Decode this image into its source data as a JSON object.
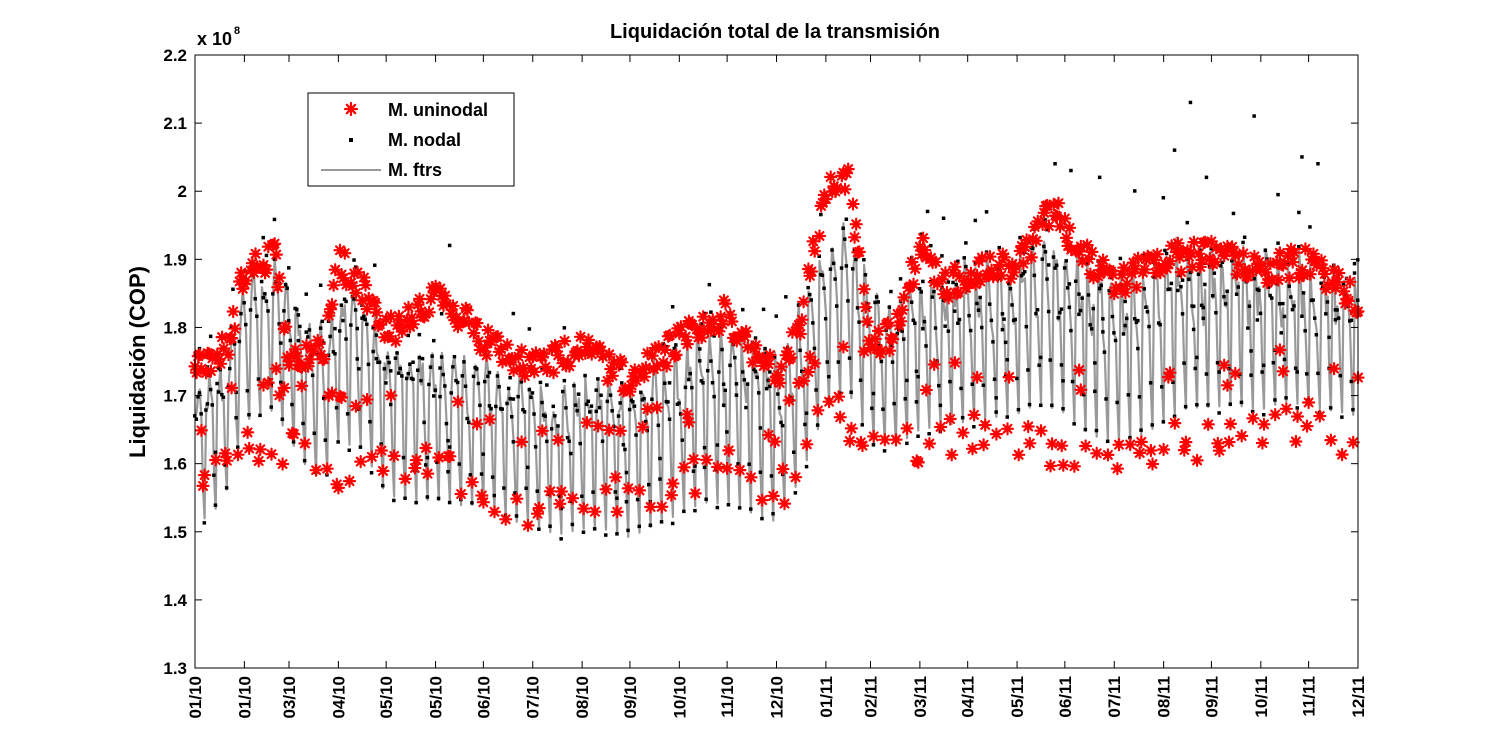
{
  "chart_data": {
    "type": "line",
    "title": "Liquidación total de la transmisión",
    "ylabel": "Liquidación (COP)",
    "xlabel": "",
    "y_multiplier": "x 10",
    "y_multiplier_exponent": "8",
    "ylim": [
      1.3,
      2.2
    ],
    "yticks": [
      "1.3",
      "1.4",
      "1.5",
      "1.6",
      "1.7",
      "1.8",
      "1.9",
      "2",
      "2.1",
      "2.2"
    ],
    "xlim": [
      0,
      730
    ],
    "xticks": [
      {
        "x": 0,
        "label": "01/10"
      },
      {
        "x": 31,
        "label": "01/10"
      },
      {
        "x": 59,
        "label": "03/10"
      },
      {
        "x": 90,
        "label": "04/10"
      },
      {
        "x": 120,
        "label": "05/10"
      },
      {
        "x": 151,
        "label": "05/10"
      },
      {
        "x": 181,
        "label": "06/10"
      },
      {
        "x": 212,
        "label": "07/10"
      },
      {
        "x": 243,
        "label": "08/10"
      },
      {
        "x": 273,
        "label": "09/10"
      },
      {
        "x": 304,
        "label": "10/10"
      },
      {
        "x": 334,
        "label": "11/10"
      },
      {
        "x": 365,
        "label": "12/10"
      },
      {
        "x": 396,
        "label": "01/11"
      },
      {
        "x": 424,
        "label": "02/11"
      },
      {
        "x": 455,
        "label": "03/11"
      },
      {
        "x": 485,
        "label": "04/11"
      },
      {
        "x": 516,
        "label": "05/11"
      },
      {
        "x": 546,
        "label": "06/11"
      },
      {
        "x": 577,
        "label": "07/11"
      },
      {
        "x": 608,
        "label": "08/11"
      },
      {
        "x": 638,
        "label": "09/11"
      },
      {
        "x": 669,
        "label": "10/11"
      },
      {
        "x": 699,
        "label": "11/11"
      },
      {
        "x": 730,
        "label": "12/11"
      }
    ],
    "grid": false,
    "legend": {
      "placement": "top-left",
      "entries": [
        {
          "label": "M. uninodal",
          "marker": "asterisk",
          "color": "#ff0000"
        },
        {
          "label": "M. nodal",
          "marker": "dot",
          "color": "#000000"
        },
        {
          "label": "M. ftrs",
          "marker": "line",
          "color": "#999999"
        }
      ]
    },
    "series": [
      {
        "name": "M. ftrs",
        "style": "line",
        "color": "#999999",
        "anchors": [
          [
            0,
            1.62
          ],
          [
            10,
            1.64
          ],
          [
            18,
            1.66
          ],
          [
            25,
            1.72
          ],
          [
            31,
            1.78
          ],
          [
            40,
            1.79
          ],
          [
            50,
            1.8
          ],
          [
            59,
            1.76
          ],
          [
            70,
            1.72
          ],
          [
            80,
            1.7
          ],
          [
            90,
            1.76
          ],
          [
            105,
            1.75
          ],
          [
            120,
            1.68
          ],
          [
            135,
            1.67
          ],
          [
            151,
            1.67
          ],
          [
            166,
            1.66
          ],
          [
            181,
            1.66
          ],
          [
            196,
            1.64
          ],
          [
            212,
            1.63
          ],
          [
            228,
            1.62
          ],
          [
            243,
            1.63
          ],
          [
            258,
            1.63
          ],
          [
            273,
            1.62
          ],
          [
            288,
            1.64
          ],
          [
            304,
            1.66
          ],
          [
            319,
            1.68
          ],
          [
            334,
            1.68
          ],
          [
            350,
            1.67
          ],
          [
            365,
            1.66
          ],
          [
            380,
            1.72
          ],
          [
            396,
            1.82
          ],
          [
            410,
            1.84
          ],
          [
            424,
            1.76
          ],
          [
            440,
            1.75
          ],
          [
            455,
            1.77
          ],
          [
            470,
            1.78
          ],
          [
            485,
            1.79
          ],
          [
            500,
            1.8
          ],
          [
            516,
            1.81
          ],
          [
            530,
            1.83
          ],
          [
            546,
            1.82
          ],
          [
            560,
            1.79
          ],
          [
            577,
            1.77
          ],
          [
            592,
            1.78
          ],
          [
            608,
            1.8
          ],
          [
            623,
            1.82
          ],
          [
            638,
            1.82
          ],
          [
            653,
            1.82
          ],
          [
            669,
            1.81
          ],
          [
            684,
            1.82
          ],
          [
            699,
            1.81
          ],
          [
            715,
            1.8
          ],
          [
            730,
            1.79
          ]
        ],
        "amplitude": [
          [
            0,
            0.13
          ],
          [
            90,
            0.15
          ],
          [
            181,
            0.14
          ],
          [
            273,
            0.15
          ],
          [
            365,
            0.17
          ],
          [
            396,
            0.16
          ],
          [
            455,
            0.14
          ],
          [
            546,
            0.17
          ],
          [
            638,
            0.16
          ],
          [
            730,
            0.14
          ]
        ],
        "weekly_cycle_days": 7
      },
      {
        "name": "M. uninodal",
        "style": "asterisk",
        "color": "#ff0000",
        "high_level": [
          [
            0,
            1.74
          ],
          [
            20,
            1.77
          ],
          [
            31,
            1.88
          ],
          [
            50,
            1.91
          ],
          [
            59,
            1.76
          ],
          [
            80,
            1.76
          ],
          [
            90,
            1.9
          ],
          [
            110,
            1.84
          ],
          [
            120,
            1.79
          ],
          [
            140,
            1.82
          ],
          [
            151,
            1.84
          ],
          [
            170,
            1.81
          ],
          [
            181,
            1.78
          ],
          [
            212,
            1.74
          ],
          [
            243,
            1.77
          ],
          [
            273,
            1.72
          ],
          [
            304,
            1.78
          ],
          [
            334,
            1.82
          ],
          [
            350,
            1.76
          ],
          [
            365,
            1.73
          ],
          [
            380,
            1.81
          ],
          [
            396,
            2.0
          ],
          [
            410,
            2.02
          ],
          [
            424,
            1.78
          ],
          [
            440,
            1.79
          ],
          [
            455,
            1.92
          ],
          [
            470,
            1.86
          ],
          [
            485,
            1.88
          ],
          [
            500,
            1.89
          ],
          [
            516,
            1.89
          ],
          [
            540,
            1.98
          ],
          [
            546,
            1.94
          ],
          [
            577,
            1.86
          ],
          [
            608,
            1.9
          ],
          [
            638,
            1.91
          ],
          [
            669,
            1.88
          ],
          [
            699,
            1.9
          ],
          [
            730,
            1.84
          ]
        ],
        "low_level": [
          [
            0,
            1.55
          ],
          [
            31,
            1.62
          ],
          [
            59,
            1.62
          ],
          [
            90,
            1.58
          ],
          [
            120,
            1.6
          ],
          [
            151,
            1.6
          ],
          [
            181,
            1.56
          ],
          [
            212,
            1.53
          ],
          [
            243,
            1.54
          ],
          [
            273,
            1.56
          ],
          [
            304,
            1.57
          ],
          [
            334,
            1.6
          ],
          [
            365,
            1.55
          ],
          [
            396,
            1.68
          ],
          [
            424,
            1.64
          ],
          [
            455,
            1.62
          ],
          [
            485,
            1.65
          ],
          [
            516,
            1.63
          ],
          [
            546,
            1.62
          ],
          [
            577,
            1.62
          ],
          [
            608,
            1.63
          ],
          [
            638,
            1.63
          ],
          [
            669,
            1.64
          ],
          [
            699,
            1.66
          ],
          [
            730,
            1.62
          ]
        ]
      },
      {
        "name": "M. nodal",
        "style": "dot",
        "color": "#000000",
        "spikes": [
          [
            160,
            1.92
          ],
          [
            200,
            1.82
          ],
          [
            300,
            1.83
          ],
          [
            320,
            1.82
          ],
          [
            460,
            1.97
          ],
          [
            470,
            1.96
          ],
          [
            540,
            2.04
          ],
          [
            550,
            2.03
          ],
          [
            568,
            2.02
          ],
          [
            590,
            2.0
          ],
          [
            608,
            1.99
          ],
          [
            615,
            2.06
          ],
          [
            625,
            2.13
          ],
          [
            635,
            2.02
          ],
          [
            665,
            2.11
          ],
          [
            695,
            2.05
          ],
          [
            705,
            2.04
          ]
        ]
      }
    ]
  }
}
